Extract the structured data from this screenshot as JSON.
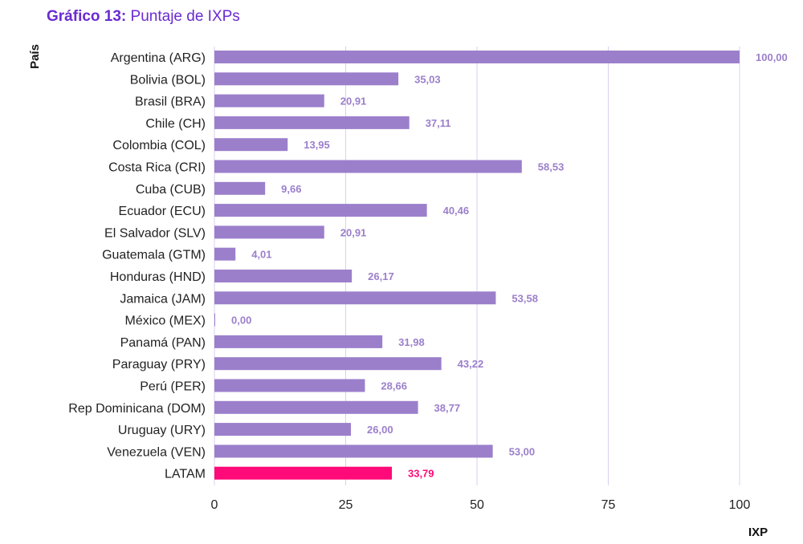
{
  "title_prefix": "Gráfico 13:",
  "title_text": "Puntaje de IXPs",
  "chart_data": {
    "type": "bar",
    "orientation": "horizontal",
    "ylabel": "País",
    "xlabel": "IXP",
    "xlim": [
      0,
      100
    ],
    "xticks": [
      0,
      25,
      50,
      75,
      100
    ],
    "grid": true,
    "categories": [
      "Argentina (ARG)",
      "Bolivia (BOL)",
      "Brasil (BRA)",
      "Chile (CH)",
      "Colombia (COL)",
      "Costa Rica (CRI)",
      "Cuba (CUB)",
      "Ecuador (ECU)",
      "El Salvador (SLV)",
      "Guatemala (GTM)",
      "Honduras (HND)",
      "Jamaica (JAM)",
      "México (MEX)",
      "Panamá (PAN)",
      "Paraguay (PRY)",
      "Perú (PER)",
      "Rep Dominicana (DOM)",
      "Uruguay (URY)",
      "Venezuela (VEN)",
      "LATAM"
    ],
    "values": [
      100.0,
      35.03,
      20.91,
      37.11,
      13.95,
      58.53,
      9.66,
      40.46,
      20.91,
      4.01,
      26.17,
      53.58,
      0.0,
      31.98,
      43.22,
      28.66,
      38.77,
      26.0,
      53.0,
      33.79
    ],
    "value_labels": [
      "100,00",
      "35,03",
      "20,91",
      "37,11",
      "13,95",
      "58,53",
      "9,66",
      "40,46",
      "20,91",
      "4,01",
      "26,17",
      "53,58",
      "0,00",
      "31,98",
      "43,22",
      "28,66",
      "38,77",
      "26,00",
      "53,00",
      "33,79"
    ],
    "colors": {
      "bar": "#9b7fcb",
      "highlight": "#ff0a78",
      "label": "#9b7fcb",
      "grid": "#d9cff0",
      "title": "#6a2bd1"
    },
    "highlight_index": 19
  }
}
